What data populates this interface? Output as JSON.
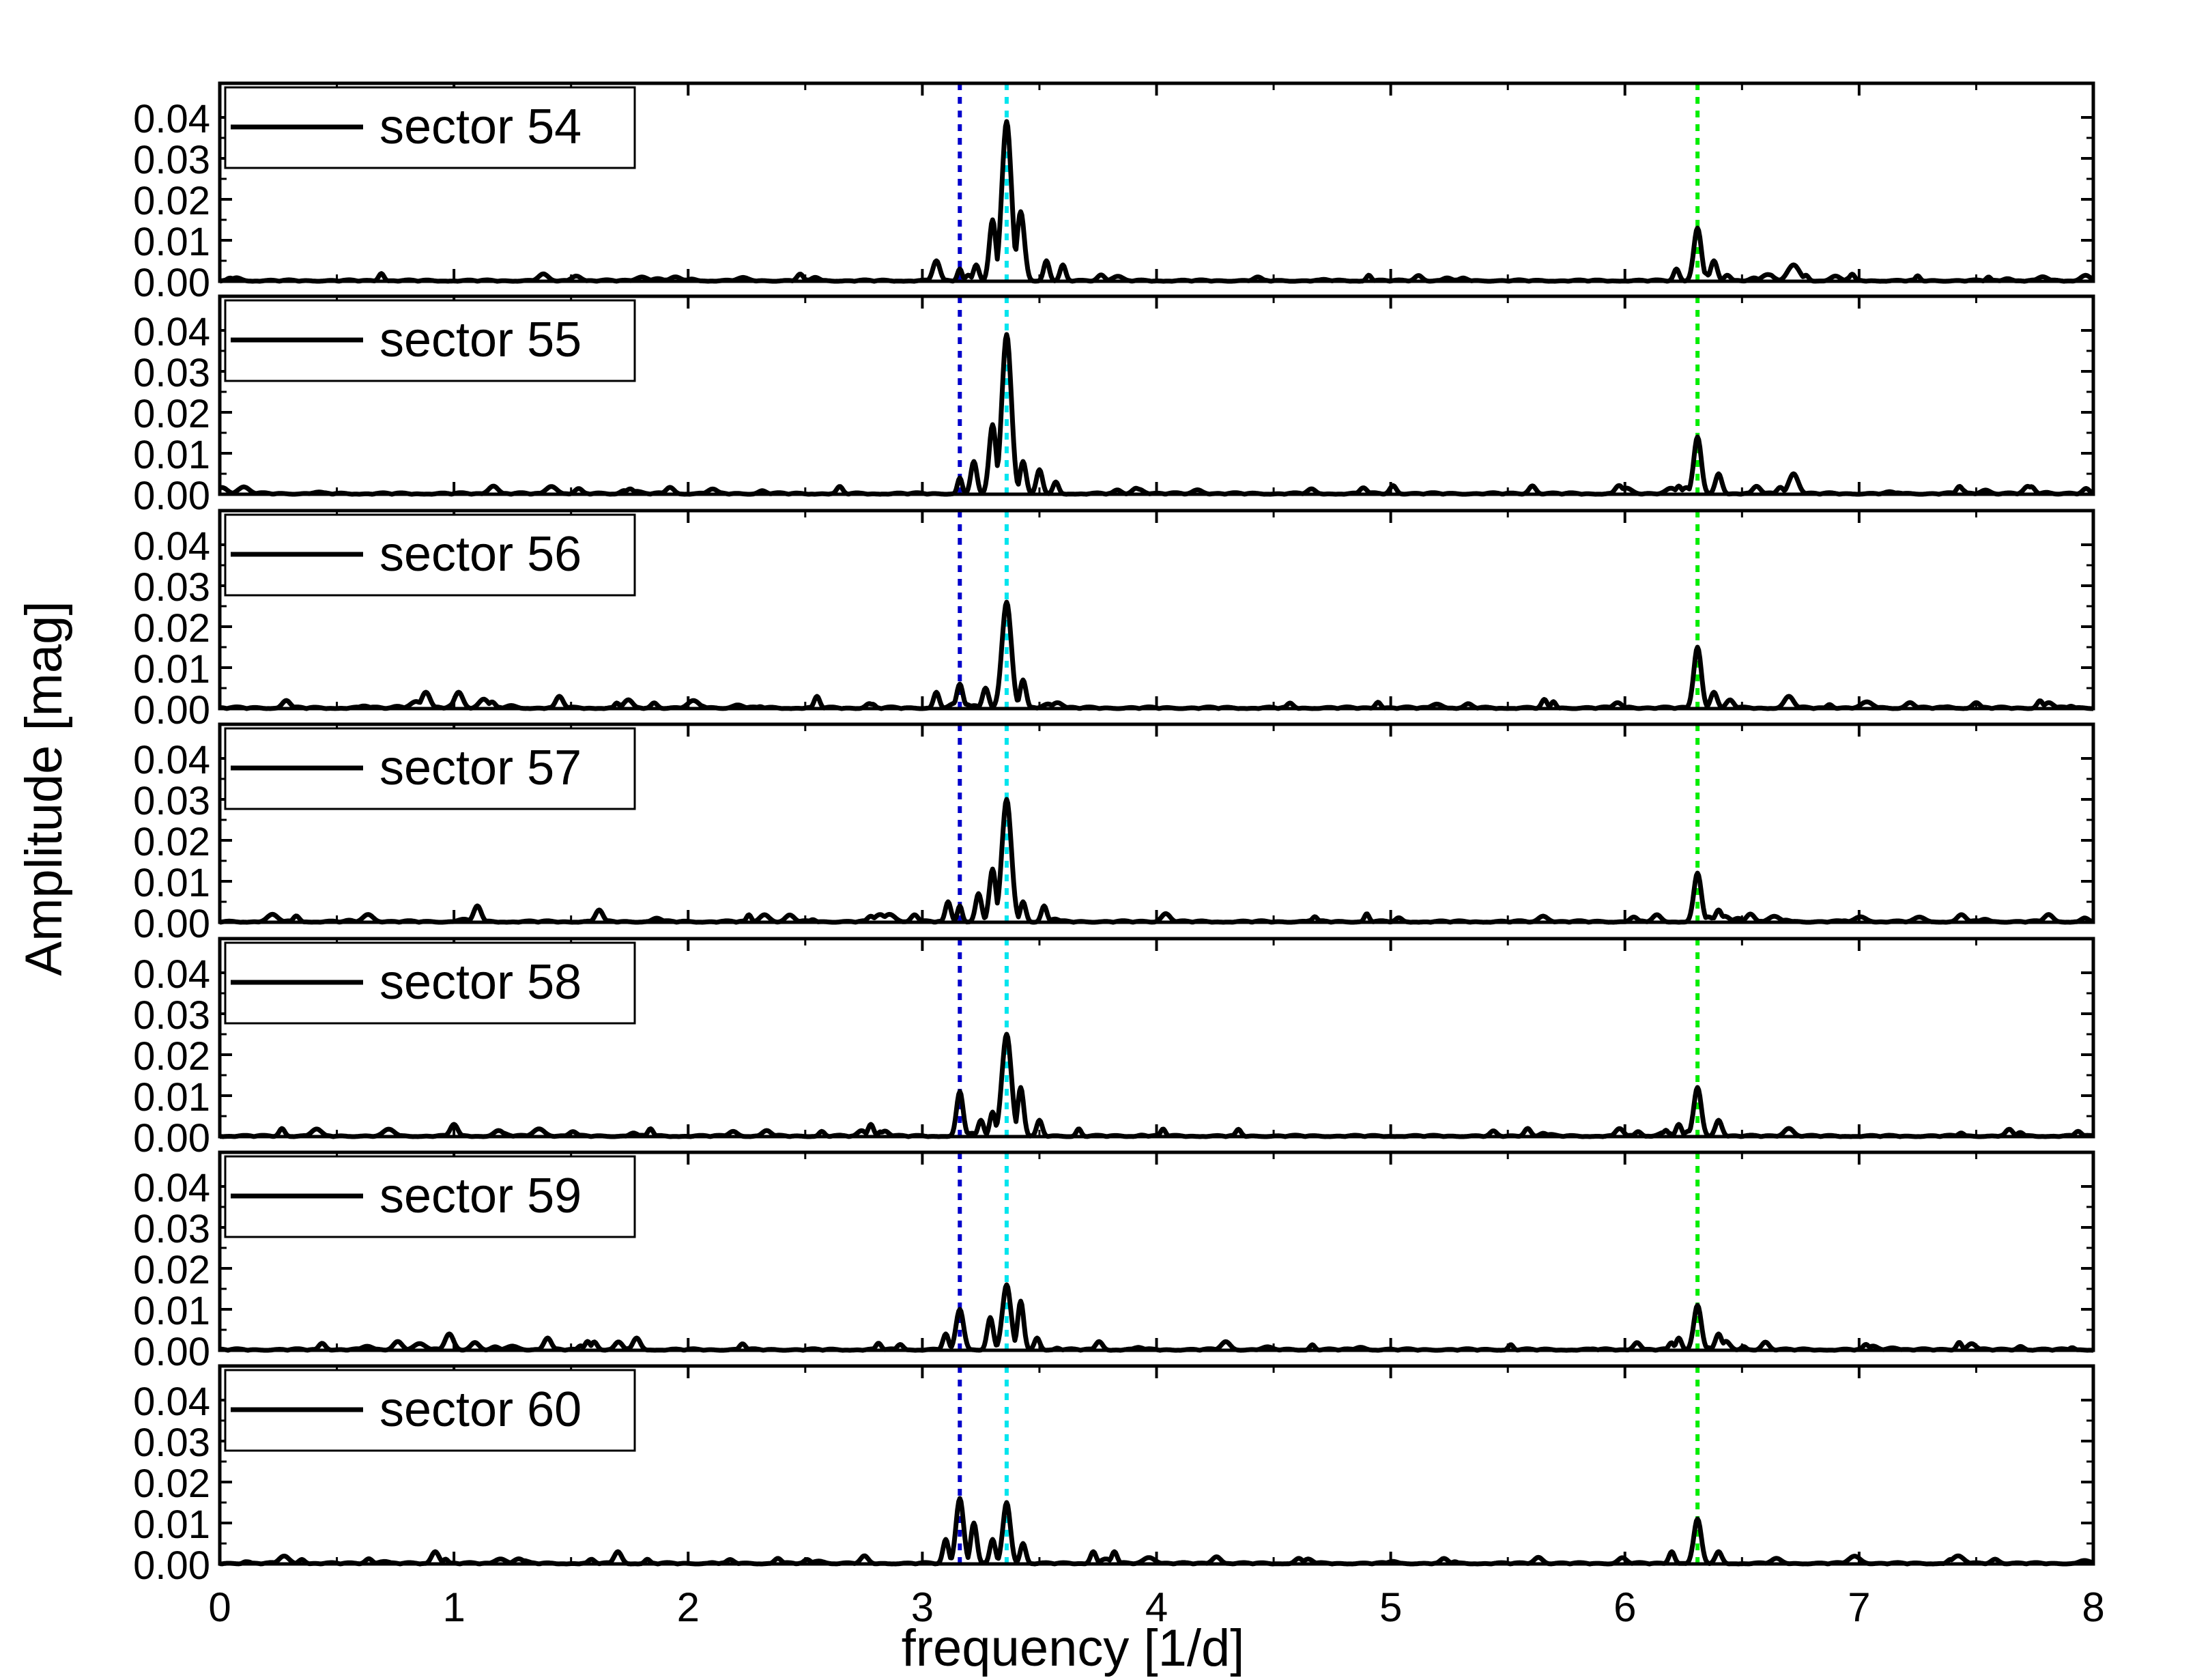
{
  "chart_data": {
    "type": "line",
    "xlabel": "frequency [1/d]",
    "ylabel": "Amplitude [mag]",
    "xlim": [
      0,
      8
    ],
    "ylim": [
      0,
      0.045
    ],
    "x_ticks": [
      "0",
      "1",
      "2",
      "3",
      "4",
      "5",
      "6",
      "7",
      "8"
    ],
    "y_ticks": [
      "0.00",
      "0.01",
      "0.02",
      "0.03",
      "0.04"
    ],
    "grid": false,
    "legend_position": "top-left",
    "series_color": "#000000",
    "reference_lines": [
      {
        "x": 3.16,
        "color": "#0000cc"
      },
      {
        "x": 3.36,
        "color": "#00e5ee"
      },
      {
        "x": 6.31,
        "color": "#00ee00"
      }
    ],
    "panels": [
      {
        "label": "sector 54",
        "noise": 0.001,
        "peaks": [
          [
            3.36,
            0.039,
            0.02
          ],
          [
            3.3,
            0.015,
            0.014
          ],
          [
            3.42,
            0.017,
            0.016
          ],
          [
            3.23,
            0.004,
            0.012
          ],
          [
            3.06,
            0.005,
            0.015
          ],
          [
            3.16,
            0.003,
            0.01
          ],
          [
            3.53,
            0.005,
            0.012
          ],
          [
            3.6,
            0.004,
            0.012
          ],
          [
            6.31,
            0.013,
            0.016
          ],
          [
            6.38,
            0.005,
            0.014
          ],
          [
            6.72,
            0.004,
            0.025
          ],
          [
            6.22,
            0.003,
            0.012
          ]
        ]
      },
      {
        "label": "sector 55",
        "noise": 0.0011,
        "peaks": [
          [
            3.36,
            0.039,
            0.02
          ],
          [
            3.3,
            0.017,
            0.015
          ],
          [
            3.22,
            0.008,
            0.013
          ],
          [
            3.43,
            0.008,
            0.013
          ],
          [
            3.16,
            0.004,
            0.01
          ],
          [
            3.5,
            0.006,
            0.013
          ],
          [
            3.57,
            0.003,
            0.012
          ],
          [
            6.31,
            0.014,
            0.016
          ],
          [
            6.4,
            0.005,
            0.014
          ],
          [
            6.72,
            0.005,
            0.02
          ],
          [
            6.23,
            0.002,
            0.012
          ]
        ]
      },
      {
        "label": "sector 56",
        "noise": 0.0012,
        "peaks": [
          [
            3.36,
            0.026,
            0.02
          ],
          [
            3.16,
            0.006,
            0.013
          ],
          [
            3.27,
            0.005,
            0.013
          ],
          [
            3.43,
            0.007,
            0.013
          ],
          [
            3.06,
            0.004,
            0.012
          ],
          [
            2.55,
            0.003,
            0.012
          ],
          [
            0.88,
            0.004,
            0.018
          ],
          [
            1.02,
            0.004,
            0.018
          ],
          [
            1.45,
            0.003,
            0.016
          ],
          [
            6.31,
            0.015,
            0.016
          ],
          [
            6.38,
            0.004,
            0.014
          ],
          [
            6.7,
            0.003,
            0.02
          ]
        ]
      },
      {
        "label": "sector 57",
        "noise": 0.0011,
        "peaks": [
          [
            3.36,
            0.03,
            0.02
          ],
          [
            3.3,
            0.013,
            0.014
          ],
          [
            3.24,
            0.007,
            0.013
          ],
          [
            3.16,
            0.004,
            0.01
          ],
          [
            3.11,
            0.005,
            0.012
          ],
          [
            3.43,
            0.005,
            0.012
          ],
          [
            3.52,
            0.004,
            0.012
          ],
          [
            1.1,
            0.004,
            0.016
          ],
          [
            1.62,
            0.003,
            0.016
          ],
          [
            6.31,
            0.012,
            0.016
          ],
          [
            6.4,
            0.003,
            0.014
          ]
        ]
      },
      {
        "label": "sector 58",
        "noise": 0.001,
        "peaks": [
          [
            3.36,
            0.025,
            0.02
          ],
          [
            3.16,
            0.011,
            0.014
          ],
          [
            3.42,
            0.012,
            0.013
          ],
          [
            3.3,
            0.006,
            0.012
          ],
          [
            3.25,
            0.004,
            0.012
          ],
          [
            3.5,
            0.004,
            0.012
          ],
          [
            2.78,
            0.003,
            0.012
          ],
          [
            1.0,
            0.003,
            0.016
          ],
          [
            6.31,
            0.012,
            0.016
          ],
          [
            6.23,
            0.003,
            0.012
          ],
          [
            6.4,
            0.004,
            0.014
          ],
          [
            6.7,
            0.002,
            0.02
          ]
        ]
      },
      {
        "label": "sector 59",
        "noise": 0.0011,
        "peaks": [
          [
            3.36,
            0.016,
            0.018
          ],
          [
            3.42,
            0.012,
            0.013
          ],
          [
            3.29,
            0.008,
            0.013
          ],
          [
            3.16,
            0.01,
            0.016
          ],
          [
            3.1,
            0.004,
            0.012
          ],
          [
            3.49,
            0.003,
            0.012
          ],
          [
            0.98,
            0.004,
            0.018
          ],
          [
            1.4,
            0.003,
            0.016
          ],
          [
            1.78,
            0.003,
            0.016
          ],
          [
            6.31,
            0.011,
            0.016
          ],
          [
            6.23,
            0.003,
            0.012
          ],
          [
            6.4,
            0.004,
            0.014
          ],
          [
            6.6,
            0.002,
            0.016
          ]
        ]
      },
      {
        "label": "sector 60",
        "noise": 0.001,
        "peaks": [
          [
            3.16,
            0.016,
            0.016
          ],
          [
            3.36,
            0.015,
            0.016
          ],
          [
            3.22,
            0.01,
            0.013
          ],
          [
            3.1,
            0.006,
            0.012
          ],
          [
            3.3,
            0.006,
            0.012
          ],
          [
            3.43,
            0.005,
            0.012
          ],
          [
            3.73,
            0.003,
            0.012
          ],
          [
            3.82,
            0.003,
            0.012
          ],
          [
            0.92,
            0.003,
            0.016
          ],
          [
            1.7,
            0.003,
            0.016
          ],
          [
            6.31,
            0.011,
            0.016
          ],
          [
            6.2,
            0.003,
            0.012
          ],
          [
            6.4,
            0.003,
            0.014
          ]
        ]
      }
    ]
  }
}
